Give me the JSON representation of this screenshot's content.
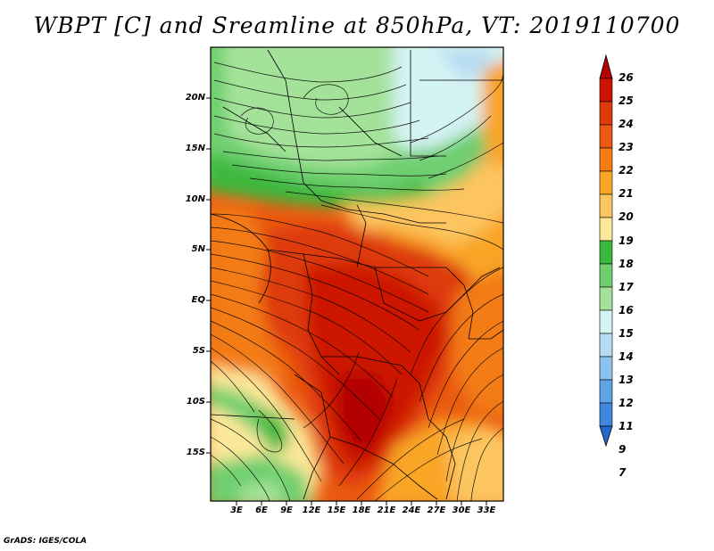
{
  "title": "WBPT [C] and Sreamline at 850hPa, VT: 2019110700",
  "footer": "GrADS: IGES/COLA",
  "lat_labels": [
    "20N",
    "15N",
    "10N",
    "5N",
    "EQ",
    "5S",
    "10S",
    "15S"
  ],
  "lon_labels": [
    "3E",
    "6E",
    "9E",
    "12E",
    "15E",
    "18E",
    "21E",
    "24E",
    "27E",
    "30E",
    "33E"
  ],
  "colorbar": {
    "labels": [
      "26",
      "25",
      "24",
      "23",
      "22",
      "21",
      "20",
      "19",
      "18",
      "17",
      "16",
      "15",
      "14",
      "13",
      "12",
      "11",
      "9",
      "7"
    ],
    "colors": [
      "#b30000",
      "#cc1400",
      "#de3a0a",
      "#ea5a10",
      "#f37c16",
      "#f9a526",
      "#fcc55e",
      "#fde89a",
      "#3cb83c",
      "#6fcf6f",
      "#a4e29a",
      "#d4f3f3",
      "#b6dcf3",
      "#8cc3ee",
      "#5fa4e6",
      "#3f86de",
      "#2468d2"
    ]
  },
  "colors": {
    "green_dark": "#3cb83c",
    "green_mid": "#6fcf6f",
    "green_light": "#a4e29a",
    "cyan_light": "#d4f3f3",
    "yellow": "#fde89a",
    "orange_light": "#f9a526",
    "orange": "#f37c16",
    "red_orange": "#de3a0a",
    "red": "#cc1400"
  }
}
